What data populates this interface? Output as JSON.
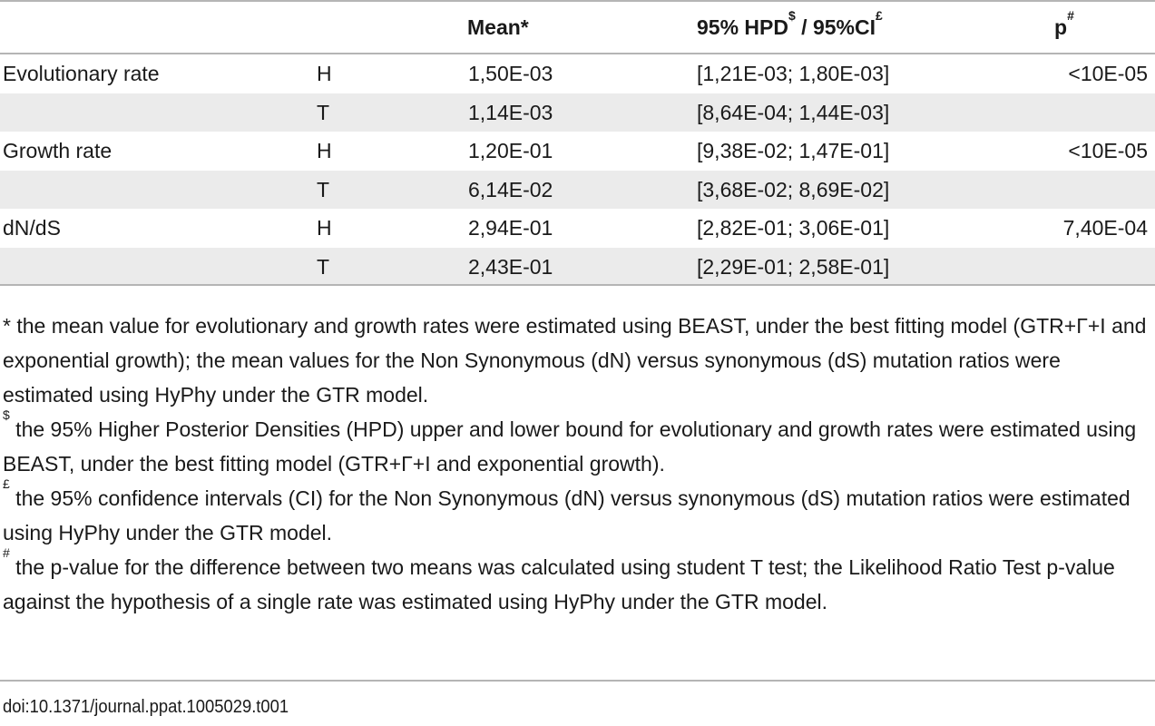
{
  "table": {
    "headers": {
      "metric": "",
      "group": "",
      "mean": "Mean",
      "mean_mark": "*",
      "hpd_prefix": "95% HPD",
      "hpd_mark": "$",
      "ci_middle": " / 95%CI",
      "ci_mark": "£",
      "p": "p",
      "p_mark": "#"
    },
    "rows": [
      {
        "metric": "Evolutionary rate",
        "group": "H",
        "mean": "1,50E-03",
        "interval": "[1,21E-03; 1,80E-03]",
        "p": "<10E-05",
        "shaded": false
      },
      {
        "metric": "",
        "group": "T",
        "mean": "1,14E-03",
        "interval": "[8,64E-04; 1,44E-03]",
        "p": "",
        "shaded": true
      },
      {
        "metric": "Growth rate",
        "group": "H",
        "mean": "1,20E-01",
        "interval": "[9,38E-02; 1,47E-01]",
        "p": "<10E-05",
        "shaded": false
      },
      {
        "metric": "",
        "group": "T",
        "mean": "6,14E-02",
        "interval": "[3,68E-02; 8,69E-02]",
        "p": "",
        "shaded": true
      },
      {
        "metric": "dN/dS",
        "group": "H",
        "mean": "2,94E-01",
        "interval": "[2,82E-01; 3,06E-01]",
        "p": "7,40E-04",
        "shaded": false
      },
      {
        "metric": "",
        "group": "T",
        "mean": "2,43E-01",
        "interval": "[2,29E-01; 2,58E-01]",
        "p": "",
        "shaded": true
      }
    ]
  },
  "footnotes": [
    {
      "mark": "",
      "text": "* the mean value for evolutionary and growth rates were estimated using BEAST, under the best fitting model (GTR+Γ+I and exponential growth); the mean values for the Non Synonymous (dN) versus synonymous (dS) mutation ratios were estimated using HyPhy under the GTR model."
    },
    {
      "mark": "$",
      "text": " the 95% Higher Posterior Densities (HPD) upper and lower bound for evolutionary and growth rates were estimated using BEAST, under the best fitting model (GTR+Γ+I and exponential growth)."
    },
    {
      "mark": "£",
      "text": " the 95% confidence intervals (CI) for the Non Synonymous (dN) versus synonymous (dS) mutation ratios were estimated using HyPhy under the GTR model."
    },
    {
      "mark": "#",
      "text": " the p-value for the difference between two means was calculated using student T test; the Likelihood Ratio Test p-value against the hypothesis of a single rate was estimated using HyPhy under the GTR model."
    }
  ],
  "doi": "doi:10.1371/journal.ppat.1005029.t001"
}
